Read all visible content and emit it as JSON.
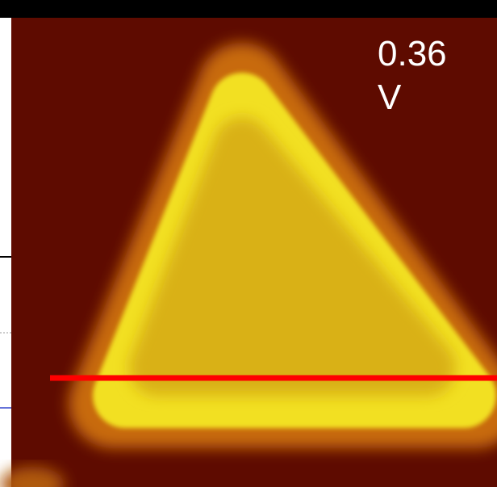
{
  "image_label": {
    "lines": [
      "0.36",
      "V"
    ]
  }
}
